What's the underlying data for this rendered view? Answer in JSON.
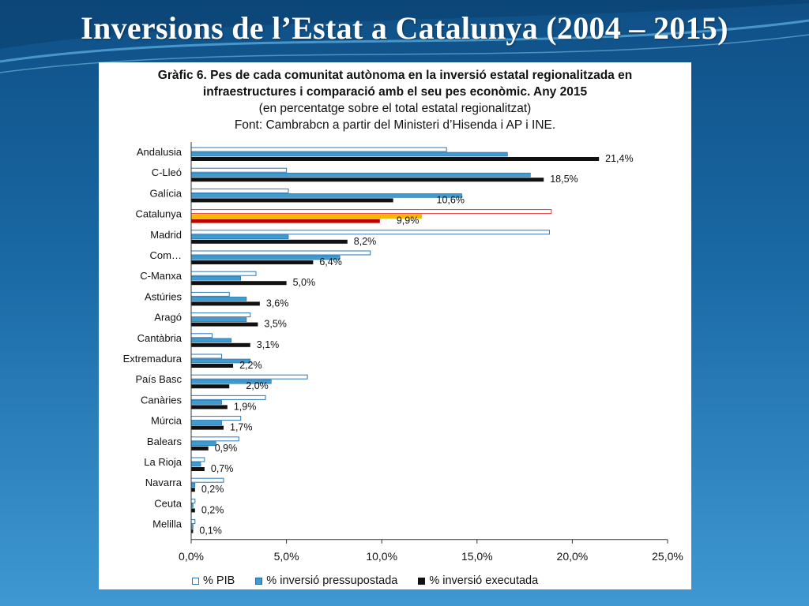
{
  "slide": {
    "title": "Inversions de l’Estat a Catalunya (2004 – 2015)"
  },
  "colors": {
    "pib": "#ffffff",
    "pib_border": "#2a78b5",
    "pressupostada": "#3f9bd0",
    "executada": "#111111",
    "catalunya_pib_border": "#e83a3a",
    "catalunya_pressupostada": "#f5b800",
    "catalunya_executada": "#c00000"
  },
  "chart_data": {
    "type": "bar",
    "orientation": "horizontal",
    "title": "Gràfic 6. Pes de cada comunitat autònoma en la inversió estatal regionalitzada en infraestructures i comparació amb el seu pes econòmic. Any 2015",
    "title_lines": [
      "Gràfic 6. Pes de cada comunitat autònoma en la inversió estatal regionalitzada en",
      "infraestructures i comparació amb el seu pes econòmic. Any 2015"
    ],
    "subtitle_lines": [
      "(en percentatge sobre el total estatal regionalitzat)",
      "Font: Cambrabcn a partir del Ministeri d’Hisenda i AP i INE."
    ],
    "categories": [
      "Andalusia",
      "C-Lleó",
      "Galícia",
      "Catalunya",
      "Madrid",
      "Com…",
      "C-Manxa",
      "Astúries",
      "Aragó",
      "Cantàbria",
      "Extremadura",
      "País Basc",
      "Canàries",
      "Múrcia",
      "Balears",
      "La Rioja",
      "Navarra",
      "Ceuta",
      "Melilla"
    ],
    "series": [
      {
        "name": "% PIB",
        "values": [
          13.4,
          5.0,
          5.1,
          18.9,
          18.8,
          9.4,
          3.4,
          2.0,
          3.1,
          1.1,
          1.6,
          6.1,
          3.9,
          2.6,
          2.5,
          0.7,
          1.7,
          0.2,
          0.2
        ]
      },
      {
        "name": "% inversió pressupostada",
        "values": [
          16.6,
          17.8,
          14.2,
          12.1,
          5.1,
          7.8,
          2.6,
          2.9,
          2.9,
          2.1,
          3.1,
          4.2,
          1.6,
          1.6,
          1.3,
          0.5,
          0.2,
          0.1,
          0.1
        ]
      },
      {
        "name": "% inversió executada",
        "values": [
          21.4,
          18.5,
          10.6,
          9.9,
          8.2,
          6.4,
          5.0,
          3.6,
          3.5,
          3.1,
          2.2,
          2.0,
          1.9,
          1.7,
          0.9,
          0.7,
          0.2,
          0.2,
          0.1
        ]
      }
    ],
    "executed_labels": [
      "21,4%",
      "18,5%",
      "10,6%",
      "9,9%",
      "8,2%",
      "6,4%",
      "5,0%",
      "3,6%",
      "3,5%",
      "3,1%",
      "2,2%",
      "2,0%",
      "1,9%",
      "1,7%",
      "0,9%",
      "0,7%",
      "0,2%",
      "0,2%",
      "0,1%"
    ],
    "highlight_category": "Catalunya",
    "xlim": [
      0,
      25
    ],
    "x_ticks": [
      0,
      5,
      10,
      15,
      20,
      25
    ],
    "x_tick_labels": [
      "0,0%",
      "5,0%",
      "10,0%",
      "15,0%",
      "20,0%",
      "25,0%"
    ],
    "grid": false,
    "legend_position": "bottom"
  },
  "legend": {
    "pib_label": "% PIB",
    "pressupostada_label": "% inversió pressupostada",
    "executada_label": "% inversió executada"
  }
}
